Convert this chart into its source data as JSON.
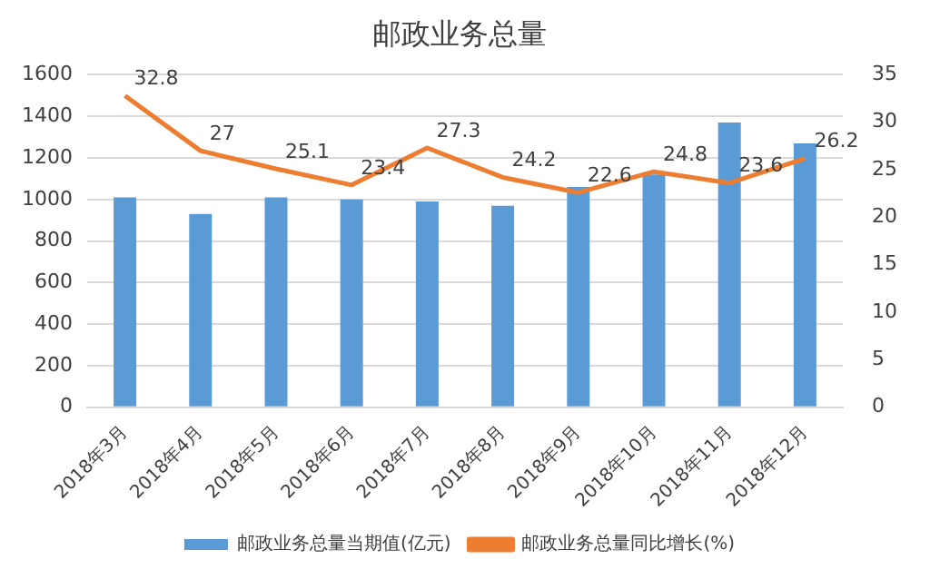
{
  "chart_data": {
    "type": "bar",
    "title": "邮政业务总量",
    "categories": [
      "2018年3月",
      "2018年4月",
      "2018年5月",
      "2018年6月",
      "2018年7月",
      "2018年8月",
      "2018年9月",
      "2018年10月",
      "2018年11月",
      "2018年12月"
    ],
    "series": [
      {
        "name": "邮政业务总量当期值(亿元)",
        "color": "#5b9bd5",
        "values": [
          1010,
          930,
          1010,
          1000,
          990,
          970,
          1060,
          1120,
          1370,
          1270
        ]
      },
      {
        "name": "邮政业务总量同比增长(%)",
        "color": "#ed7d31",
        "type": "line",
        "axis": "y2",
        "values": [
          32.8,
          27,
          25.1,
          23.4,
          27.3,
          24.2,
          22.6,
          24.8,
          23.6,
          26.2
        ],
        "value_labels": [
          "32.8",
          "27",
          "25.1",
          "23.4",
          "27.3",
          "24.2",
          "22.6",
          "24.8",
          "23.6",
          "26.2"
        ]
      }
    ],
    "ylim": [
      0,
      1600
    ],
    "yticks": [
      0,
      200,
      400,
      600,
      800,
      1000,
      1200,
      1400,
      1600
    ],
    "y2lim": [
      0,
      35
    ],
    "y2ticks": [
      0,
      5,
      10,
      15,
      20,
      25,
      30,
      35
    ],
    "grid": "y",
    "legend": "bottom",
    "marker": "none"
  }
}
